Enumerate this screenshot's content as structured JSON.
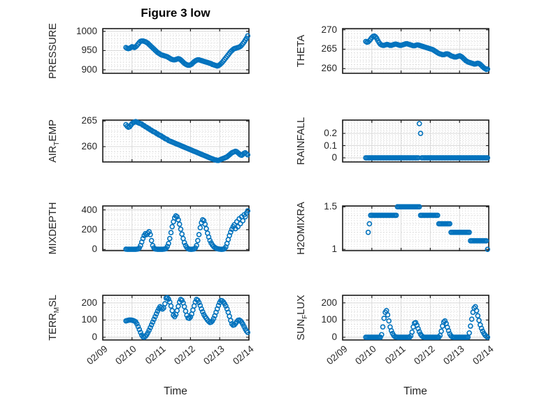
{
  "figure": {
    "title": "Figure 3 low",
    "xlabel": "Time",
    "background": "#ffffff",
    "accent_color": "#0072BD",
    "axis_color": "#1c1c1c",
    "grid_color": "#d9d9d9",
    "minor_grid_color": "#d2d2d2",
    "text_color": "#262626"
  },
  "time_axis": {
    "xlim_days": [
      0,
      5
    ],
    "tick_positions_days": [
      0,
      1,
      2,
      3,
      4,
      5
    ],
    "tick_labels": [
      "02/09",
      "02/10",
      "02/11",
      "02/12",
      "02/13",
      "02/14"
    ],
    "start_day_offset": 0.7917,
    "step_days": 0.0416667
  },
  "chart_data": [
    {
      "name": "PRESSURE",
      "type": "scatter",
      "marker": "o",
      "col": 0,
      "row": 0,
      "ylabel_parts": [
        {
          "t": "PRESSURE"
        }
      ],
      "ylim": [
        891,
        1007
      ],
      "yticks": [
        900,
        950,
        1000
      ],
      "ytick_labels": [
        "900",
        "950",
        "1000"
      ],
      "minor_y": [
        910,
        920,
        930,
        940,
        960,
        970,
        980,
        990
      ],
      "values": [
        958,
        956,
        955,
        956,
        958,
        960,
        959,
        958,
        960,
        963,
        967,
        971,
        974,
        975,
        975,
        974,
        973,
        971,
        969,
        966,
        963,
        960,
        957,
        954,
        951,
        948,
        945,
        943,
        941,
        939,
        938,
        937,
        936,
        935,
        934,
        932,
        930,
        928,
        927,
        926,
        926,
        927,
        928,
        929,
        928,
        926,
        923,
        920,
        917,
        915,
        913,
        912,
        912,
        913,
        915,
        918,
        921,
        923,
        925,
        926,
        926,
        925,
        924,
        923,
        922,
        921,
        920,
        919,
        918,
        917,
        916,
        914,
        913,
        912,
        911,
        910,
        911,
        913,
        916,
        919,
        923,
        927,
        931,
        935,
        939,
        943,
        947,
        950,
        953,
        955,
        956,
        957,
        958,
        959,
        961,
        964,
        968,
        972,
        977,
        982,
        988
      ]
    },
    {
      "name": "THETA",
      "type": "scatter",
      "marker": "o",
      "col": 1,
      "row": 0,
      "ylabel_parts": [
        {
          "t": "THETA"
        }
      ],
      "ylim": [
        258.8,
        270.3
      ],
      "yticks": [
        260,
        265,
        270
      ],
      "ytick_labels": [
        "260",
        "265",
        "270"
      ],
      "minor_y": [
        261,
        262,
        263,
        264,
        266,
        267,
        268,
        269
      ],
      "values": [
        267.0,
        266.8,
        266.9,
        267.2,
        267.6,
        268.0,
        268.3,
        268.4,
        268.2,
        267.8,
        267.2,
        266.7,
        266.3,
        266.1,
        266.0,
        266.0,
        266.1,
        266.2,
        266.2,
        266.1,
        266.0,
        266.0,
        266.1,
        266.2,
        266.3,
        266.3,
        266.2,
        266.1,
        266.0,
        266.0,
        266.1,
        266.2,
        266.3,
        266.4,
        266.4,
        266.3,
        266.2,
        266.1,
        266.0,
        265.9,
        265.9,
        266.0,
        266.1,
        266.1,
        266.0,
        265.9,
        265.8,
        265.7,
        265.6,
        265.5,
        265.4,
        265.3,
        265.2,
        265.1,
        265.0,
        264.9,
        264.7,
        264.5,
        264.3,
        264.1,
        263.9,
        263.8,
        263.7,
        263.6,
        263.6,
        263.7,
        263.8,
        263.8,
        263.7,
        263.5,
        263.3,
        263.2,
        263.1,
        263.0,
        263.0,
        263.1,
        263.2,
        263.3,
        263.2,
        263.0,
        262.7,
        262.4,
        262.1,
        261.9,
        261.7,
        261.6,
        261.5,
        261.4,
        261.3,
        261.2,
        261.2,
        261.3,
        261.4,
        261.3,
        261.1,
        260.8,
        260.5,
        260.2,
        260.0,
        259.8,
        259.9
      ]
    },
    {
      "name": "AIR_TEMP",
      "type": "scatter",
      "marker": "o",
      "col": 0,
      "row": 1,
      "ylabel_parts": [
        {
          "t": "AIR"
        },
        {
          "t": "T",
          "sub": true
        },
        {
          "t": "EMP"
        }
      ],
      "ylim": [
        257.0,
        265.2
      ],
      "yticks": [
        260,
        265
      ],
      "ytick_labels": [
        "260",
        "265"
      ],
      "minor_y": [
        258,
        259,
        261,
        262,
        263,
        264
      ],
      "values": [
        264.3,
        264.0,
        263.8,
        263.9,
        264.2,
        264.5,
        264.7,
        264.8,
        264.9,
        264.8,
        264.7,
        264.6,
        264.5,
        264.4,
        264.2,
        264.1,
        263.9,
        263.8,
        263.6,
        263.5,
        263.3,
        263.2,
        263.0,
        262.9,
        262.8,
        262.6,
        262.5,
        262.3,
        262.2,
        262.1,
        261.9,
        261.8,
        261.6,
        261.5,
        261.4,
        261.2,
        261.1,
        261.0,
        260.9,
        260.8,
        260.7,
        260.6,
        260.5,
        260.4,
        260.3,
        260.2,
        260.1,
        260.0,
        259.9,
        259.8,
        259.7,
        259.6,
        259.5,
        259.4,
        259.3,
        259.2,
        259.1,
        259.0,
        258.9,
        258.8,
        258.7,
        258.6,
        258.5,
        258.4,
        258.3,
        258.2,
        258.1,
        258.0,
        257.9,
        257.8,
        257.7,
        257.6,
        257.5,
        257.4,
        257.4,
        257.3,
        257.3,
        257.4,
        257.5,
        257.6,
        257.7,
        257.8,
        257.9,
        258.0,
        258.2,
        258.4,
        258.6,
        258.8,
        258.9,
        259.0,
        259.1,
        259.0,
        258.8,
        258.6,
        258.4,
        258.3,
        258.5,
        258.7,
        258.8,
        258.6,
        258.4
      ]
    },
    {
      "name": "RAINFALL",
      "type": "scatter",
      "marker": "o",
      "col": 1,
      "row": 1,
      "ylabel_parts": [
        {
          "t": "RAINFALL"
        }
      ],
      "ylim": [
        -0.034,
        0.309
      ],
      "yticks": [
        0,
        0.1,
        0.2
      ],
      "ytick_labels": [
        "0",
        "0.1",
        "0.2"
      ],
      "minor_y": [
        0.02,
        0.04,
        0.06,
        0.08,
        0.12,
        0.14,
        0.16,
        0.18,
        0.22,
        0.24,
        0.26,
        0.28,
        0.3
      ],
      "values": [
        0,
        0,
        0,
        0,
        0,
        0,
        0,
        0,
        0,
        0,
        0,
        0,
        0,
        0,
        0,
        0,
        0,
        0,
        0,
        0,
        0,
        0,
        0,
        0,
        0,
        0,
        0,
        0,
        0,
        0,
        0,
        0,
        0,
        0,
        0,
        0,
        0,
        0,
        0,
        0,
        0,
        0,
        0,
        0,
        0.28,
        0.2,
        0,
        0,
        0,
        0,
        0,
        0,
        0,
        0,
        0,
        0,
        0,
        0,
        0,
        0,
        0,
        0,
        0,
        0,
        0,
        0,
        0,
        0,
        0,
        0,
        0,
        0,
        0,
        0,
        0,
        0,
        0,
        0,
        0,
        0,
        0,
        0,
        0,
        0,
        0,
        0,
        0,
        0,
        0,
        0,
        0,
        0,
        0,
        0,
        0,
        0,
        0,
        0,
        0,
        0,
        0
      ]
    },
    {
      "name": "MIXDEPTH",
      "type": "scatter",
      "marker": "o",
      "col": 0,
      "row": 2,
      "ylabel_parts": [
        {
          "t": "MIXDEPTH"
        }
      ],
      "ylim": [
        -12,
        440
      ],
      "yticks": [
        0,
        200,
        400
      ],
      "ytick_labels": [
        "0",
        "200",
        "400"
      ],
      "minor_y": [
        50,
        100,
        150,
        250,
        300,
        350
      ],
      "values": [
        3,
        2,
        2,
        2,
        2,
        2,
        2,
        2,
        2,
        3,
        5,
        15,
        40,
        75,
        110,
        140,
        160,
        150,
        165,
        180,
        150,
        90,
        40,
        15,
        5,
        3,
        2,
        2,
        2,
        2,
        2,
        3,
        5,
        10,
        30,
        60,
        110,
        170,
        230,
        280,
        320,
        340,
        330,
        300,
        255,
        205,
        155,
        110,
        70,
        40,
        20,
        8,
        3,
        2,
        2,
        3,
        5,
        15,
        40,
        90,
        150,
        220,
        270,
        300,
        290,
        255,
        210,
        165,
        125,
        90,
        65,
        45,
        30,
        20,
        12,
        8,
        5,
        3,
        2,
        2,
        3,
        8,
        25,
        60,
        100,
        140,
        175,
        205,
        230,
        250,
        210,
        280,
        230,
        310,
        260,
        330,
        290,
        350,
        330,
        368,
        390
      ]
    },
    {
      "name": "H2OMIXRA",
      "type": "scatter",
      "marker": "o",
      "col": 1,
      "row": 2,
      "ylabel_parts": [
        {
          "t": "H2OMIXRA"
        }
      ],
      "ylim": [
        0.985,
        1.51
      ],
      "yticks": [
        1,
        1.5
      ],
      "ytick_labels": [
        "1",
        "1.5"
      ],
      "minor_y": [
        1.1,
        1.2,
        1.3,
        1.4
      ],
      "values": [
        null,
        null,
        1.2,
        1.3,
        1.4,
        1.4,
        1.4,
        1.4,
        1.4,
        1.4,
        1.4,
        1.4,
        1.4,
        1.4,
        1.4,
        1.4,
        1.4,
        1.4,
        1.4,
        1.4,
        1.4,
        1.4,
        1.4,
        1.4,
        1.4,
        1.4,
        1.5,
        1.5,
        1.5,
        1.5,
        1.5,
        1.5,
        1.5,
        1.5,
        1.5,
        1.5,
        1.5,
        1.5,
        1.5,
        1.5,
        1.5,
        1.5,
        1.5,
        1.5,
        1.5,
        1.4,
        1.4,
        1.4,
        1.4,
        1.4,
        1.4,
        1.4,
        1.4,
        1.4,
        1.4,
        1.4,
        1.4,
        1.4,
        1.4,
        1.4,
        1.3,
        1.3,
        1.3,
        1.3,
        1.3,
        1.3,
        1.3,
        1.3,
        1.3,
        1.3,
        1.2,
        1.2,
        1.2,
        1.2,
        1.2,
        1.2,
        1.2,
        1.2,
        1.2,
        1.2,
        1.2,
        1.2,
        1.2,
        1.2,
        1.2,
        1.2,
        1.1,
        1.1,
        1.1,
        1.1,
        1.1,
        1.1,
        1.1,
        1.1,
        1.1,
        1.1,
        1.1,
        1.1,
        1.1,
        1.1,
        1.0
      ]
    },
    {
      "name": "TERR_MSL",
      "type": "scatter",
      "marker": "o",
      "col": 0,
      "row": 3,
      "ylabel_parts": [
        {
          "t": "TERR"
        },
        {
          "t": "M",
          "sub": true
        },
        {
          "t": "SL"
        }
      ],
      "ylim": [
        -16,
        244
      ],
      "yticks": [
        0,
        100,
        200
      ],
      "ytick_labels": [
        "0",
        "100",
        "200"
      ],
      "minor_y": [
        25,
        50,
        75,
        125,
        150,
        175,
        225
      ],
      "values": [
        95,
        97,
        99,
        100,
        100,
        99,
        97,
        94,
        90,
        78,
        62,
        45,
        28,
        12,
        2,
        0,
        5,
        14,
        26,
        40,
        56,
        72,
        88,
        104,
        120,
        136,
        152,
        166,
        178,
        172,
        164,
        170,
        195,
        228,
        230,
        222,
        205,
        182,
        155,
        128,
        120,
        132,
        155,
        180,
        205,
        220,
        215,
        200,
        178,
        152,
        128,
        112,
        110,
        118,
        135,
        158,
        182,
        205,
        220,
        215,
        202,
        185,
        165,
        148,
        132,
        120,
        110,
        100,
        92,
        86,
        88,
        95,
        108,
        125,
        145,
        165,
        185,
        202,
        214,
        212,
        205,
        195,
        182,
        165,
        145,
        122,
        98,
        78,
        70,
        72,
        80,
        90,
        98,
        100,
        96,
        88,
        76,
        62,
        48,
        36,
        28
      ]
    },
    {
      "name": "SUN_FLUX",
      "type": "scatter",
      "marker": "o",
      "col": 1,
      "row": 3,
      "ylabel_parts": [
        {
          "t": "SUN"
        },
        {
          "t": "F",
          "sub": true
        },
        {
          "t": "LUX"
        }
      ],
      "ylim": [
        -16,
        244
      ],
      "yticks": [
        0,
        100,
        200
      ],
      "ytick_labels": [
        "0",
        "100",
        "200"
      ],
      "minor_y": [
        25,
        50,
        75,
        125,
        150,
        175,
        225
      ],
      "values": [
        0,
        0,
        0,
        0,
        0,
        0,
        0,
        0,
        0,
        0,
        0,
        0,
        0,
        15,
        60,
        110,
        145,
        155,
        130,
        95,
        60,
        38,
        22,
        10,
        3,
        1,
        0,
        0,
        0,
        0,
        0,
        0,
        0,
        0,
        0,
        0,
        0,
        8,
        30,
        60,
        82,
        85,
        70,
        50,
        32,
        18,
        8,
        2,
        0,
        0,
        0,
        0,
        0,
        0,
        0,
        0,
        0,
        0,
        0,
        0,
        0,
        10,
        35,
        65,
        88,
        95,
        80,
        58,
        38,
        20,
        8,
        2,
        0,
        0,
        0,
        0,
        0,
        0,
        0,
        0,
        0,
        0,
        0,
        0,
        0,
        25,
        65,
        105,
        145,
        170,
        178,
        155,
        125,
        98,
        72,
        52,
        35,
        22,
        12,
        5,
        0
      ]
    }
  ]
}
